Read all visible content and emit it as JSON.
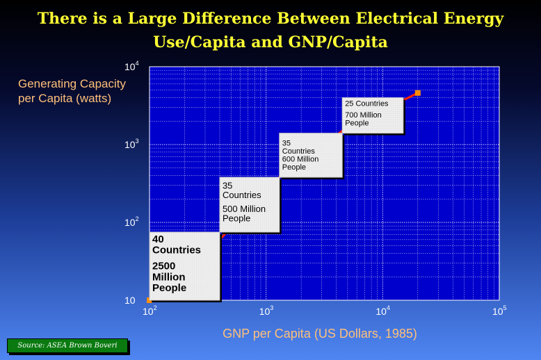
{
  "title": {
    "line1": "There is a Large Difference Between Electrical Energy",
    "line2": "Use/Capita and GNP/Capita"
  },
  "source": "Source:  ASEA Brown Boveri",
  "colors": {
    "plot_background": "#0000cc",
    "line": "#ff2200",
    "marker": "#ff8c00",
    "title": "#ffff33",
    "axis_label": "#ffc07a",
    "source_box": "#0a7a10"
  },
  "chart_data": {
    "type": "line",
    "title": "There is a Large Difference Between Electrical Energy Use/Capita and GNP/Capita",
    "xlabel": "GNP per Capita (US Dollars, 1985)",
    "ylabel": "Generating Capacity per Capita (watts)",
    "x_scale": "log",
    "y_scale": "log",
    "xlim": [
      100,
      100000
    ],
    "ylim": [
      10,
      10000
    ],
    "grid": true,
    "x_ticks": [
      {
        "base": "10",
        "exp": "2"
      },
      {
        "base": "10",
        "exp": "3"
      },
      {
        "base": "10",
        "exp": "4"
      },
      {
        "base": "10",
        "exp": "5"
      }
    ],
    "y_ticks": [
      {
        "base": "10",
        "exp": ""
      },
      {
        "base": "10",
        "exp": "2"
      },
      {
        "base": "10",
        "exp": "3"
      },
      {
        "base": "10",
        "exp": "4"
      }
    ],
    "series": [
      {
        "x": [
          100,
          400,
          1300,
          4500,
          20000
        ],
        "y": [
          10,
          60,
          380,
          1500,
          4600
        ]
      }
    ],
    "endpoints": [
      {
        "x": 100,
        "y": 10
      },
      {
        "x": 20000,
        "y": 4600
      }
    ],
    "groups": [
      {
        "lines": [
          "40",
          "Countries",
          "",
          "2500",
          "Million",
          "People"
        ],
        "x_range": [
          100,
          400
        ],
        "y_range": [
          10,
          75
        ],
        "font": "large"
      },
      {
        "lines": [
          "35",
          "Countries",
          "",
          "500 Million",
          "People"
        ],
        "x_range": [
          400,
          1300
        ],
        "y_range": [
          75,
          380
        ],
        "font": "medium"
      },
      {
        "lines": [
          "35",
          "Countries",
          "600 Million",
          "People"
        ],
        "x_range": [
          1300,
          4500
        ],
        "y_range": [
          380,
          1400
        ],
        "font": "small"
      },
      {
        "lines": [
          "25 Countries",
          "",
          "700 Million",
          "People"
        ],
        "x_range": [
          4500,
          15000
        ],
        "y_range": [
          1400,
          4000
        ],
        "font": "small"
      }
    ]
  }
}
